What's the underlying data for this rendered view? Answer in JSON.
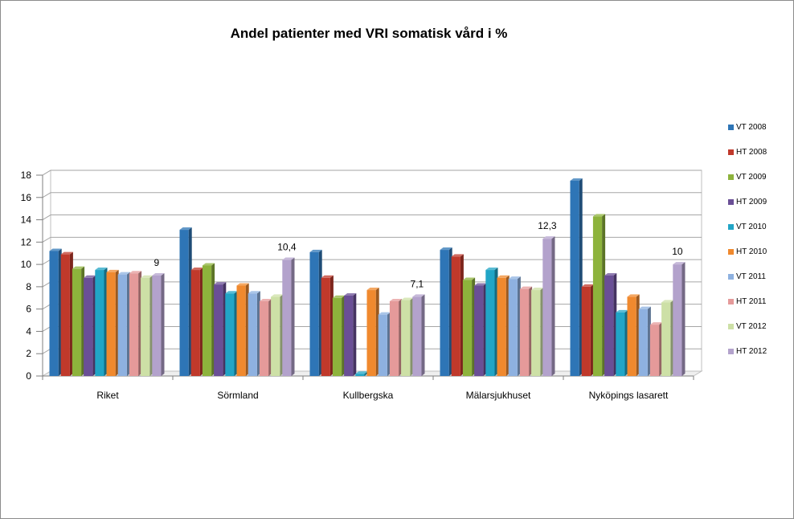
{
  "chart_data": {
    "type": "bar",
    "title": "Andel patienter med VRI somatisk vård i %",
    "categories": [
      "Riket",
      "Sörmland",
      "Kullbergska",
      "Mälarsjukhuset",
      "Nyköpings lasarett"
    ],
    "ylim": [
      0,
      18
    ],
    "yticks": [
      "0",
      "2",
      "4",
      "6",
      "8",
      "10",
      "12",
      "14",
      "16",
      "18"
    ],
    "grid": true,
    "legend_position": "right",
    "three_d": true,
    "series": [
      {
        "name": "VT 2008",
        "color": "#2e75b6",
        "values": [
          11.2,
          13.1,
          11.1,
          11.3,
          17.5
        ]
      },
      {
        "name": "HT 2008",
        "color": "#c0392b",
        "values": [
          10.9,
          9.5,
          8.8,
          10.7,
          8.0
        ]
      },
      {
        "name": "VT 2009",
        "color": "#8db33c",
        "values": [
          9.6,
          9.9,
          7.0,
          8.6,
          14.3
        ]
      },
      {
        "name": "HT 2009",
        "color": "#6a4f96",
        "values": [
          8.8,
          8.2,
          7.2,
          8.1,
          9.0
        ]
      },
      {
        "name": "VT 2010",
        "color": "#21a5c6",
        "values": [
          9.5,
          7.4,
          0.2,
          9.5,
          5.7
        ]
      },
      {
        "name": "HT 2010",
        "color": "#f0892e",
        "values": [
          9.3,
          8.1,
          7.7,
          8.8,
          7.1
        ]
      },
      {
        "name": "VT 2011",
        "color": "#8eb1e0",
        "values": [
          9.1,
          7.4,
          5.5,
          8.7,
          6.0
        ]
      },
      {
        "name": "HT 2011",
        "color": "#e59a9a",
        "values": [
          9.2,
          6.7,
          6.7,
          7.8,
          4.6
        ]
      },
      {
        "name": "VT 2012",
        "color": "#cde0a6",
        "values": [
          8.8,
          7.1,
          6.8,
          7.7,
          6.6
        ]
      },
      {
        "name": "HT 2012",
        "color": "#b3a2cc",
        "values": [
          9.0,
          10.4,
          7.1,
          12.3,
          10.0
        ]
      }
    ],
    "data_labels": [
      {
        "series": 9,
        "category": 0,
        "text": "9"
      },
      {
        "series": 9,
        "category": 1,
        "text": "10,4"
      },
      {
        "series": 9,
        "category": 2,
        "text": "7,1"
      },
      {
        "series": 9,
        "category": 3,
        "text": "12,3"
      },
      {
        "series": 9,
        "category": 4,
        "text": "10"
      }
    ]
  }
}
